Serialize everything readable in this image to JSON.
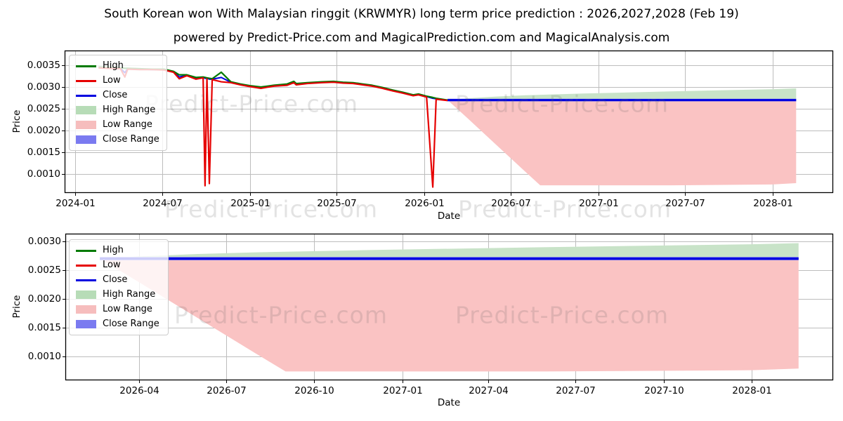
{
  "page": {
    "title": "South Korean won With Malaysian ringgit (KRWMYR) long term price prediction : 2026,2027,2028 (Feb 19)",
    "subtitle": "powered by Predict-Price.com and MagicalPrediction.com and MagicalAnalysis.com"
  },
  "watermark": {
    "text": "Predict-Price.com"
  },
  "colors": {
    "high_line": "#007a00",
    "low_line": "#e60000",
    "close_line": "#0000e0",
    "high_range_fill": "#c8e3c8",
    "low_range_fill": "#fac3c3",
    "close_range_fill": "#7575ee",
    "legend_high_patch": "#b7dcb7",
    "legend_low_patch": "#f6bdbd",
    "legend_close_patch": "#7a7af0",
    "grid": "#bdbdbd",
    "border": "#000000"
  },
  "chart_data": [
    {
      "type": "line",
      "title": "",
      "xlabel": "Date",
      "ylabel": "Price",
      "legend": [
        "High",
        "Low",
        "Close",
        "High Range",
        "Low Range",
        "Close Range"
      ],
      "legend_position": "upper-left",
      "grid": true,
      "ylim": [
        0.00057,
        0.00384
      ],
      "x_ticks": [
        {
          "label": "2024-01",
          "date": "2024-01-01"
        },
        {
          "label": "2024-07",
          "date": "2024-07-01"
        },
        {
          "label": "2025-01",
          "date": "2025-01-01"
        },
        {
          "label": "2025-07",
          "date": "2025-07-01"
        },
        {
          "label": "2026-01",
          "date": "2026-01-01"
        },
        {
          "label": "2026-07",
          "date": "2026-07-01"
        },
        {
          "label": "2027-01",
          "date": "2027-01-01"
        },
        {
          "label": "2027-07",
          "date": "2027-07-01"
        },
        {
          "label": "2028-01",
          "date": "2028-01-01"
        }
      ],
      "y_ticks": [
        {
          "label": "0.0035",
          "value": 0.0035
        },
        {
          "label": "0.0030",
          "value": 0.003
        },
        {
          "label": "0.0025",
          "value": 0.0025
        },
        {
          "label": "0.0020",
          "value": 0.002
        },
        {
          "label": "0.0015",
          "value": 0.0015
        },
        {
          "label": "0.0010",
          "value": 0.001
        }
      ],
      "history": {
        "dates": [
          "2024-02-19",
          "2024-03-10",
          "2024-04-05",
          "2024-04-14",
          "2024-04-20",
          "2024-05-15",
          "2024-06-10",
          "2024-07-05",
          "2024-07-25",
          "2024-08-06",
          "2024-08-22",
          "2024-09-10",
          "2024-09-25",
          "2024-09-29",
          "2024-10-03",
          "2024-10-08",
          "2024-10-14",
          "2024-11-02",
          "2024-11-22",
          "2024-12-12",
          "2025-01-01",
          "2025-01-24",
          "2025-02-20",
          "2025-03-20",
          "2025-04-03",
          "2025-04-08",
          "2025-05-01",
          "2025-06-01",
          "2025-06-25",
          "2025-07-15",
          "2025-08-05",
          "2025-08-25",
          "2025-09-14",
          "2025-10-05",
          "2025-10-27",
          "2025-11-17",
          "2025-12-09",
          "2025-12-20",
          "2026-01-06",
          "2026-01-19",
          "2026-01-26",
          "2026-02-19"
        ],
        "high": [
          0.00346,
          0.00345,
          0.00344,
          0.00343,
          0.00343,
          0.00342,
          0.00341,
          0.00341,
          0.00336,
          0.00328,
          0.00328,
          0.00322,
          0.00323,
          0.00322,
          0.00321,
          0.0032,
          0.00319,
          0.00334,
          0.00312,
          0.00307,
          0.00303,
          0.003,
          0.00304,
          0.00307,
          0.00313,
          0.00308,
          0.0031,
          0.00312,
          0.00313,
          0.00311,
          0.0031,
          0.00307,
          0.00304,
          0.00299,
          0.00293,
          0.00288,
          0.00282,
          0.00284,
          0.00279,
          0.00276,
          0.00274,
          0.0027
        ],
        "low": [
          0.00344,
          0.00343,
          0.00342,
          0.00323,
          0.00341,
          0.0034,
          0.0034,
          0.00339,
          0.00334,
          0.00319,
          0.00326,
          0.00318,
          0.00321,
          0.00073,
          0.00319,
          0.00078,
          0.00317,
          0.00312,
          0.0031,
          0.00305,
          0.00301,
          0.00297,
          0.00302,
          0.00304,
          0.0031,
          0.00305,
          0.00308,
          0.0031,
          0.00311,
          0.00309,
          0.00308,
          0.00305,
          0.00302,
          0.00297,
          0.00291,
          0.00286,
          0.0028,
          0.00282,
          0.00277,
          0.0007,
          0.00272,
          0.00269
        ],
        "close": [
          0.00345,
          0.00344,
          0.00343,
          0.00333,
          0.00342,
          0.00341,
          0.0034,
          0.0034,
          0.00335,
          0.00323,
          0.00327,
          0.0032,
          0.00322,
          0.0032,
          0.0032,
          0.00318,
          0.00318,
          0.00322,
          0.00311,
          0.00306,
          0.00302,
          0.00298,
          0.00303,
          0.00305,
          0.00311,
          0.00306,
          0.00309,
          0.00311,
          0.00312,
          0.0031,
          0.00309,
          0.00306,
          0.00303,
          0.00298,
          0.00292,
          0.00287,
          0.00281,
          0.00283,
          0.00278,
          0.00274,
          0.00273,
          0.00269
        ]
      },
      "prediction": {
        "dates": [
          "2026-02-19",
          "2026-04-01",
          "2026-06-01",
          "2026-08-01",
          "2026-09-01",
          "2026-12-01",
          "2027-06-01",
          "2028-01-01",
          "2028-02-19"
        ],
        "close": [
          0.0027,
          0.0027,
          0.0027,
          0.0027,
          0.0027,
          0.0027,
          0.0027,
          0.0027,
          0.0027
        ],
        "high_range_top": [
          0.0027,
          0.00274,
          0.00278,
          0.00281,
          0.00282,
          0.00285,
          0.0029,
          0.00295,
          0.00297
        ],
        "low_range_bottom": [
          0.0027,
          0.00229,
          0.00167,
          0.00105,
          0.00074,
          0.00074,
          0.00074,
          0.00076,
          0.00079
        ],
        "close_range_half_width": 3e-05
      }
    },
    {
      "type": "line",
      "title": "",
      "xlabel": "Date",
      "ylabel": "Price",
      "legend": [
        "High",
        "Low",
        "Close",
        "High Range",
        "Low Range",
        "Close Range"
      ],
      "legend_position": "upper-left",
      "grid": true,
      "ylim": [
        0.00059,
        0.00313
      ],
      "x_ticks": [
        {
          "label": "2026-04",
          "date": "2026-04-01"
        },
        {
          "label": "2026-07",
          "date": "2026-07-01"
        },
        {
          "label": "2026-10",
          "date": "2026-10-01"
        },
        {
          "label": "2027-01",
          "date": "2027-01-01"
        },
        {
          "label": "2027-04",
          "date": "2027-04-01"
        },
        {
          "label": "2027-07",
          "date": "2027-07-01"
        },
        {
          "label": "2027-10",
          "date": "2027-10-01"
        },
        {
          "label": "2028-01",
          "date": "2028-01-01"
        }
      ],
      "y_ticks": [
        {
          "label": "0.0030",
          "value": 0.003
        },
        {
          "label": "0.0025",
          "value": 0.0025
        },
        {
          "label": "0.0020",
          "value": 0.002
        },
        {
          "label": "0.0015",
          "value": 0.0015
        },
        {
          "label": "0.0010",
          "value": 0.001
        }
      ],
      "prediction": {
        "dates": [
          "2026-02-19",
          "2026-04-01",
          "2026-06-01",
          "2026-08-01",
          "2026-09-01",
          "2026-12-01",
          "2027-06-01",
          "2028-01-01",
          "2028-02-19"
        ],
        "close": [
          0.0027,
          0.0027,
          0.0027,
          0.0027,
          0.0027,
          0.0027,
          0.0027,
          0.0027,
          0.0027
        ],
        "high_range_top": [
          0.0027,
          0.00274,
          0.00278,
          0.00281,
          0.00282,
          0.00285,
          0.0029,
          0.00295,
          0.00297
        ],
        "low_range_bottom": [
          0.0027,
          0.00229,
          0.00167,
          0.00105,
          0.00074,
          0.00074,
          0.00074,
          0.00076,
          0.00079
        ],
        "close_range_half_width": 3e-05
      }
    }
  ]
}
